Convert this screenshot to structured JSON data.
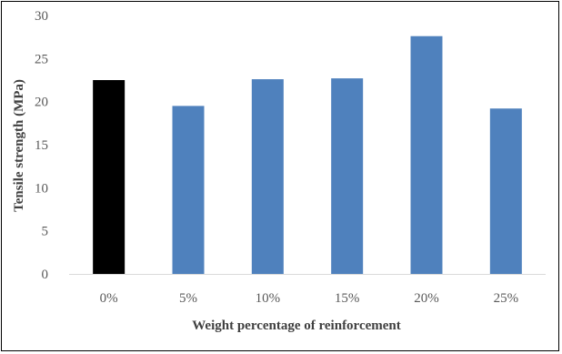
{
  "chart_data": {
    "type": "bar",
    "title": "",
    "xlabel": "Weight percentage of reinforcement",
    "ylabel": "Tensile strength (MPa)",
    "categories": [
      "0%",
      "5%",
      "10%",
      "15%",
      "20%",
      "25%"
    ],
    "values": [
      22.5,
      19.5,
      22.6,
      22.7,
      27.6,
      19.2
    ],
    "bar_colors": [
      "#000000",
      "#4f81bd",
      "#4f81bd",
      "#4f81bd",
      "#4f81bd",
      "#4f81bd"
    ],
    "ylim": [
      0,
      30
    ],
    "yticks": [
      "0",
      "5",
      "10",
      "15",
      "20",
      "25",
      "30"
    ],
    "grid": false,
    "legend": "none"
  }
}
